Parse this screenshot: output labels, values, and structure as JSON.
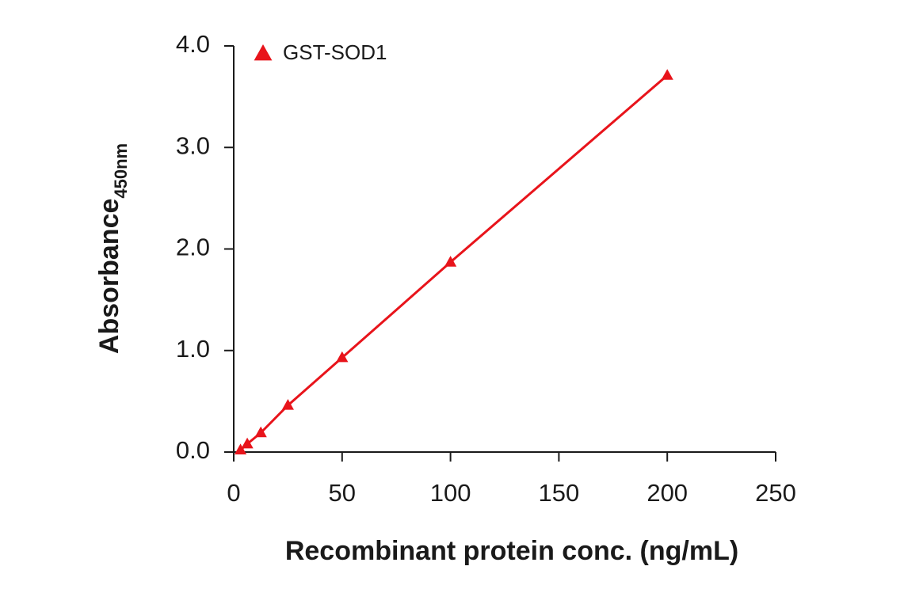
{
  "chart_data": {
    "type": "line",
    "xlabel": "Recombinant protein conc. (ng/mL)",
    "ylabel": "Absorbance",
    "ylabel_subscript": "450nm",
    "xlim": [
      0,
      250
    ],
    "xticks": [
      0,
      50,
      100,
      150,
      200,
      250
    ],
    "ylim": [
      0,
      4
    ],
    "yticks": [
      {
        "value": 0,
        "label": "0.0"
      },
      {
        "value": 1,
        "label": "1.0"
      },
      {
        "value": 2,
        "label": "2.0"
      },
      {
        "value": 3,
        "label": "3.0"
      },
      {
        "value": 4,
        "label": "4.0"
      }
    ],
    "legend_position": "upper left",
    "series": [
      {
        "name": "GST-SOD1",
        "color": "#e8141b",
        "marker": "triangle",
        "x": [
          3.125,
          6.25,
          12.5,
          25,
          50,
          100,
          200
        ],
        "values": [
          0.02,
          0.08,
          0.19,
          0.46,
          0.93,
          1.87,
          3.71
        ]
      }
    ]
  }
}
